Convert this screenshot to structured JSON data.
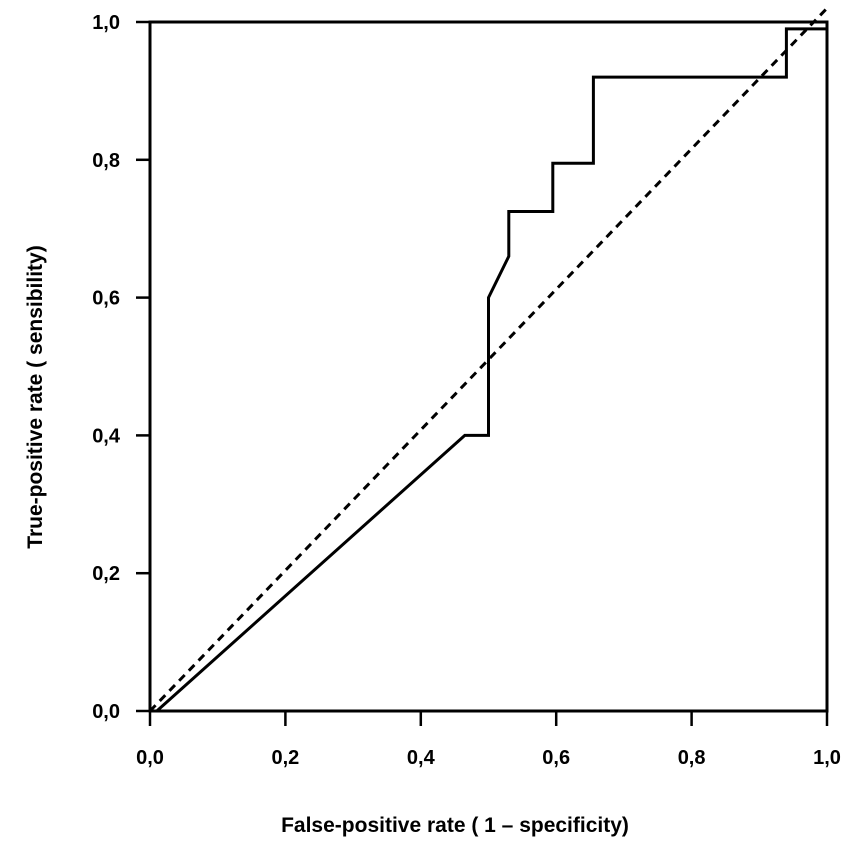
{
  "chart_data": {
    "type": "line",
    "xlabel": "False-positive rate ( 1 – specificity)",
    "ylabel": "True-positive rate ( sensibility)",
    "xlim": [
      0,
      1
    ],
    "ylim": [
      0,
      1
    ],
    "x_ticks": [
      "0,0",
      "0,2",
      "0,4",
      "0,6",
      "0,8",
      "1,0"
    ],
    "x_tick_values": [
      0,
      0.2,
      0.4,
      0.6,
      0.8,
      1.0
    ],
    "y_ticks": [
      "0,0",
      "0,2",
      "0,4",
      "0,6",
      "0,8",
      "1,0"
    ],
    "y_tick_values": [
      0,
      0.2,
      0.4,
      0.6,
      0.8,
      1.0
    ],
    "grid": false,
    "series": [
      {
        "style": "solid",
        "color": "#000000",
        "x": [
          0.01,
          0.465,
          0.5,
          0.5,
          0.53,
          0.53,
          0.595,
          0.595,
          0.655,
          0.655,
          0.94,
          0.94,
          1.0
        ],
        "y": [
          0.0,
          0.4,
          0.4,
          0.6,
          0.66,
          0.725,
          0.725,
          0.795,
          0.795,
          0.92,
          0.92,
          0.99,
          0.99
        ]
      },
      {
        "style": "dashed",
        "color": "#000000",
        "x": [
          0.0,
          1.0
        ],
        "y": [
          0.0,
          1.02
        ]
      }
    ]
  }
}
